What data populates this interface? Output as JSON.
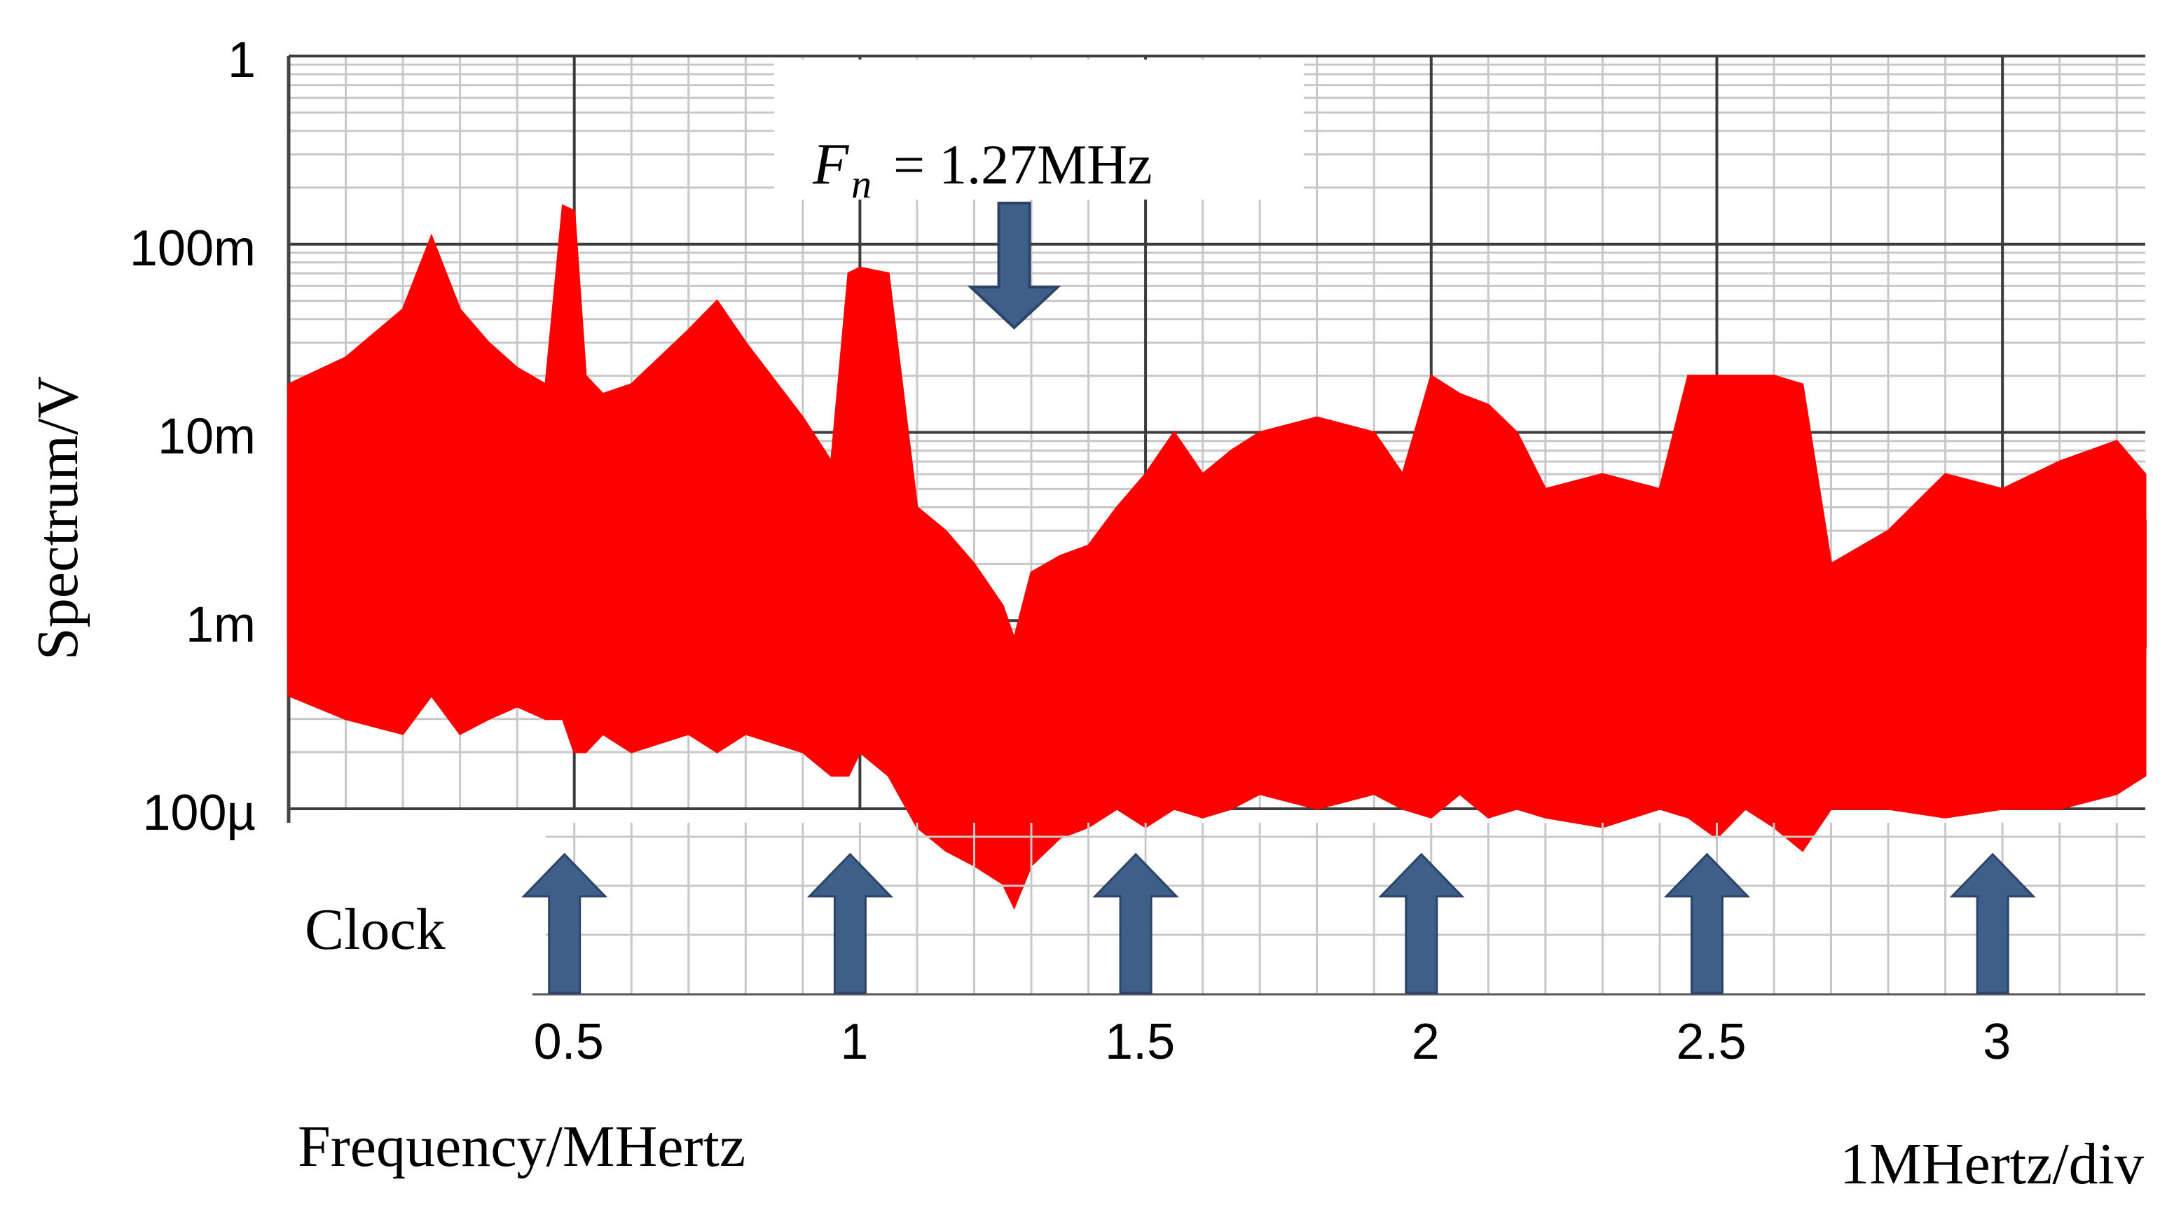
{
  "chart_data": {
    "type": "line",
    "title": "",
    "xlabel": "Frequency/MHertz",
    "ylabel": "Spectrum/V",
    "scale_note": "1MHertz/div",
    "x_ticks": [
      "0.5",
      "1",
      "1.5",
      "2",
      "2.5",
      "3"
    ],
    "x_tick_values": [
      0.5,
      1,
      1.5,
      2,
      2.5,
      3
    ],
    "xlim": [
      0.0,
      3.25
    ],
    "y_scale": "log",
    "y_ticks": [
      "1",
      "100m",
      "10m",
      "1m",
      "100µ"
    ],
    "y_tick_values": [
      1,
      0.1,
      0.01,
      0.001,
      0.0001
    ],
    "ylim": [
      0.0001,
      1
    ],
    "grid": true,
    "annotation": {
      "label": "= 1.27MHz",
      "symbol": "F",
      "subscript": "n",
      "x": 1.27
    },
    "clock_label": "Clock",
    "clock_markers": [
      0.5,
      1.0,
      1.5,
      2.0,
      2.5,
      3.0
    ],
    "colors": {
      "trace": "#ff0000",
      "arrow": "#3e5f8a",
      "grid": "#c8c8c8",
      "major_grid": "#3c3c3c"
    },
    "series": [
      {
        "x": [
          0.0,
          0.1,
          0.2,
          0.25,
          0.3,
          0.35,
          0.4,
          0.45,
          0.48,
          0.5,
          0.52,
          0.55,
          0.6,
          0.7,
          0.75,
          0.8,
          0.9,
          0.95,
          0.98,
          1.0,
          1.05,
          1.1,
          1.15,
          1.2,
          1.25,
          1.27,
          1.3,
          1.35,
          1.4,
          1.45,
          1.5,
          1.55,
          1.6,
          1.65,
          1.7,
          1.8,
          1.9,
          1.95,
          2.0,
          2.05,
          2.1,
          2.15,
          2.2,
          2.3,
          2.4,
          2.45,
          2.5,
          2.55,
          2.6,
          2.65,
          2.7,
          2.8,
          2.9,
          3.0,
          3.1,
          3.2,
          3.25
        ],
        "upper": [
          0.018,
          0.025,
          0.045,
          0.11,
          0.045,
          0.03,
          0.022,
          0.018,
          0.16,
          0.15,
          0.02,
          0.016,
          0.018,
          0.035,
          0.05,
          0.03,
          0.012,
          0.007,
          0.07,
          0.075,
          0.07,
          0.004,
          0.003,
          0.002,
          0.0012,
          0.0008,
          0.0018,
          0.0022,
          0.0025,
          0.004,
          0.006,
          0.01,
          0.006,
          0.008,
          0.01,
          0.012,
          0.01,
          0.006,
          0.02,
          0.016,
          0.014,
          0.01,
          0.005,
          0.006,
          0.005,
          0.02,
          0.02,
          0.02,
          0.02,
          0.018,
          0.002,
          0.003,
          0.006,
          0.005,
          0.007,
          0.009,
          0.006
        ],
        "lower": [
          0.0004,
          0.0003,
          0.00025,
          0.0004,
          0.00025,
          0.0003,
          0.00035,
          0.0003,
          0.0003,
          0.0002,
          0.0002,
          0.00025,
          0.0002,
          0.00025,
          0.0002,
          0.00025,
          0.0002,
          0.00015,
          0.00015,
          0.0002,
          0.00015,
          8e-05,
          6e-05,
          5e-05,
          4e-05,
          3e-05,
          5e-05,
          7e-05,
          8e-05,
          0.0001,
          8e-05,
          0.0001,
          9e-05,
          0.0001,
          0.00012,
          0.0001,
          0.00012,
          0.0001,
          9e-05,
          0.00012,
          9e-05,
          0.0001,
          9e-05,
          8e-05,
          0.0001,
          9e-05,
          7e-05,
          0.0001,
          8e-05,
          6e-05,
          0.0001,
          0.0001,
          9e-05,
          0.0001,
          0.0001,
          0.00012,
          0.00015
        ]
      }
    ]
  }
}
